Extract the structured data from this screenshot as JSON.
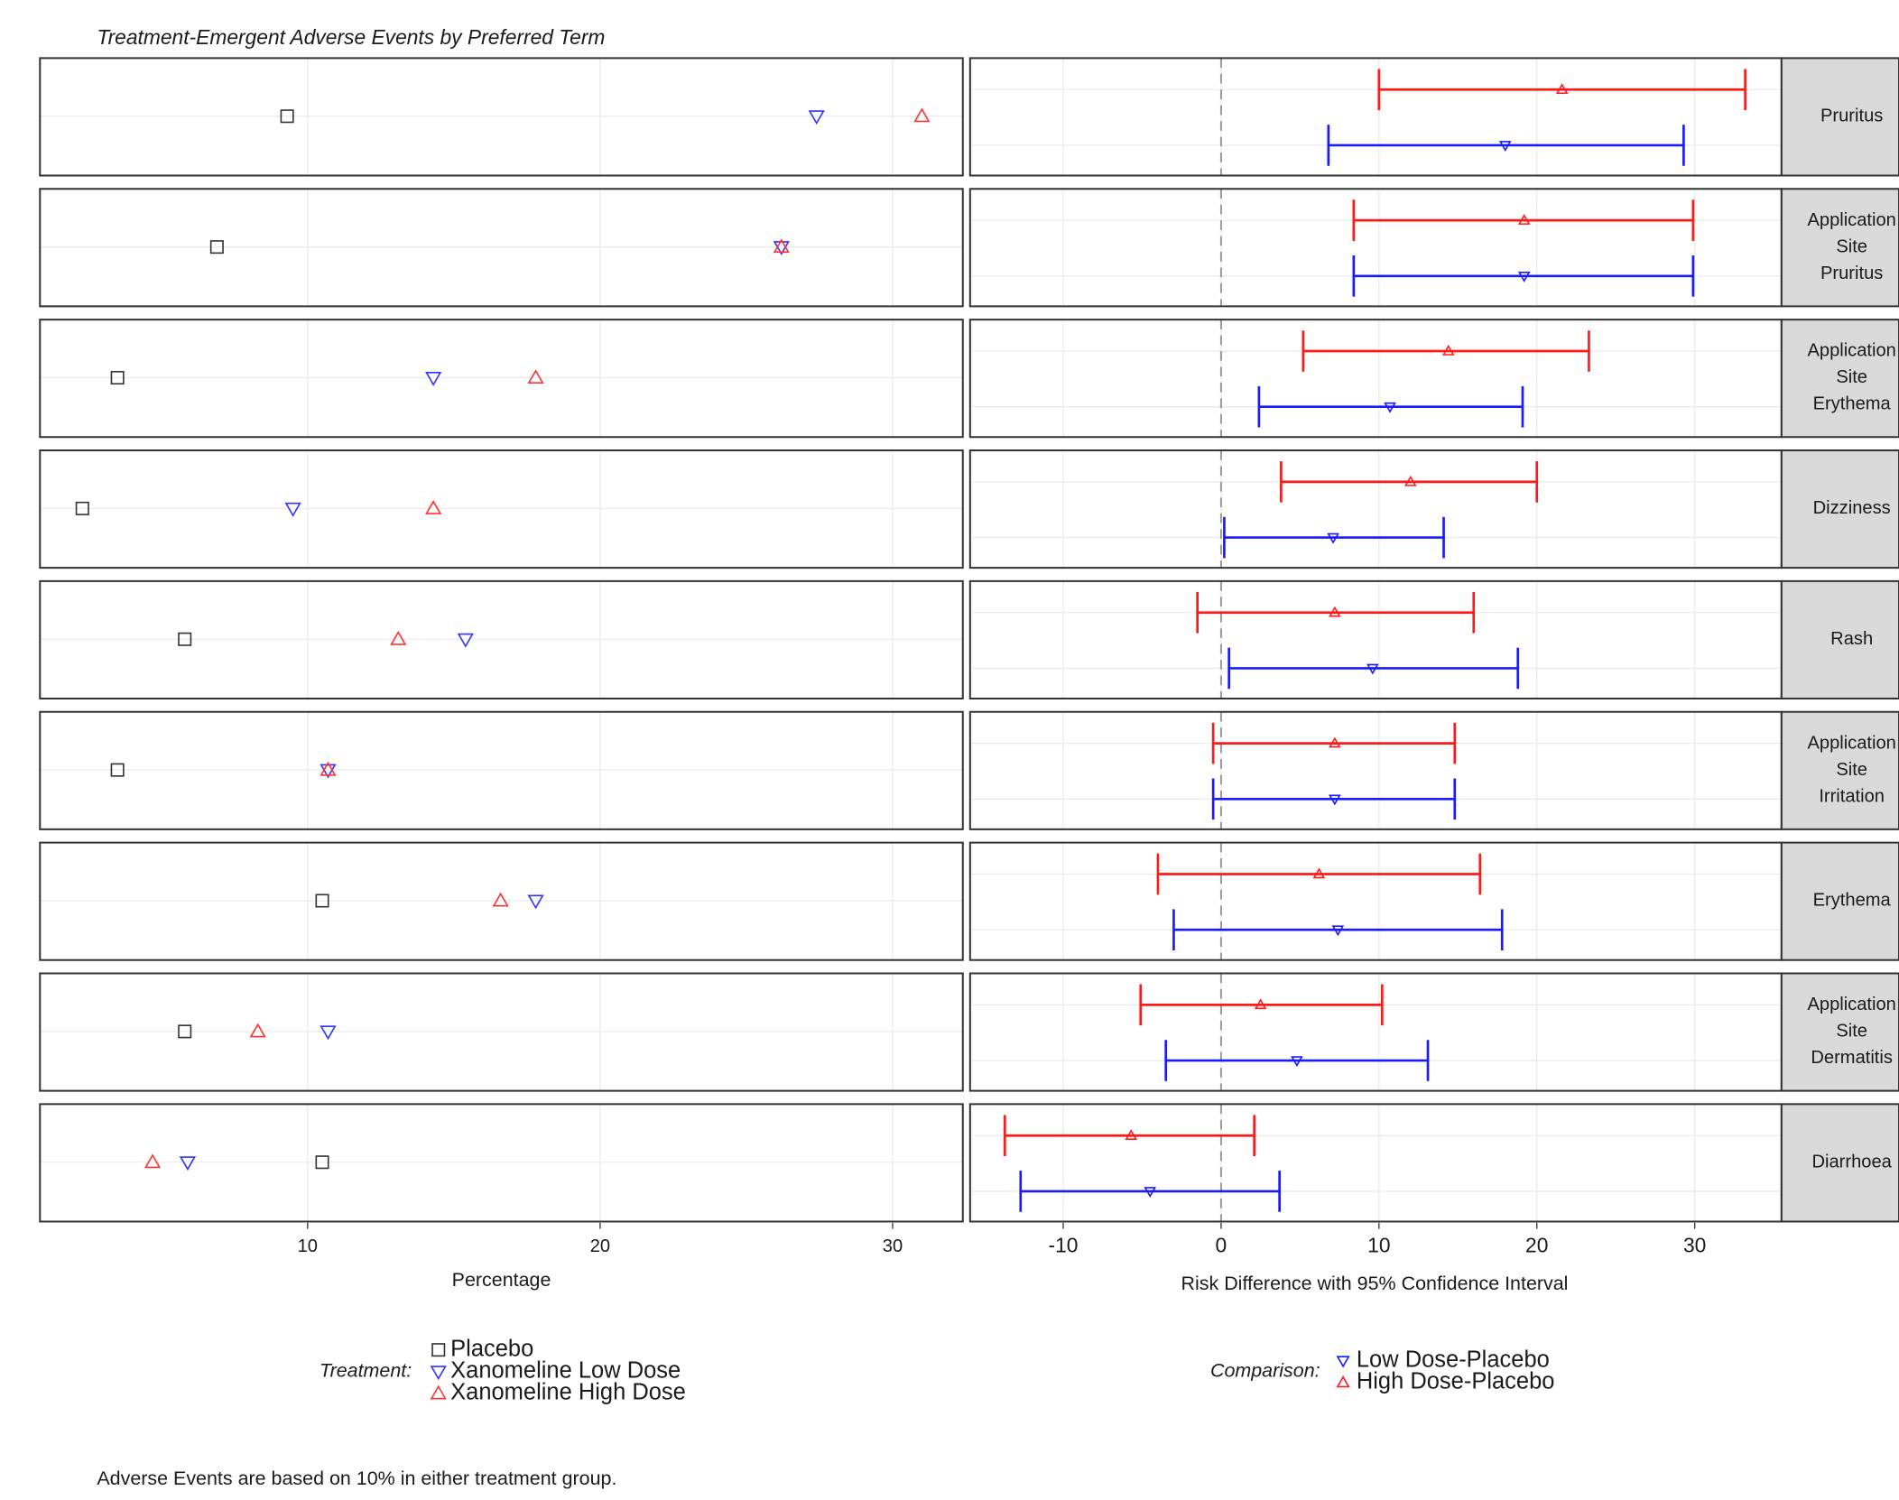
{
  "chart_data": [
    {
      "type": "dot",
      "title": "Treatment-Emergent Adverse Events by Preferred Term",
      "xlabel": "Percentage",
      "xlim": [
        0.85,
        32.4
      ],
      "xticks": [
        10,
        20,
        30
      ],
      "grid": true,
      "legend_title": "Treatment:",
      "series": [
        {
          "name": "Placebo",
          "color": "#333333",
          "marker": "square",
          "values": [
            9.3,
            6.9,
            3.5,
            2.3,
            5.8,
            3.5,
            10.5,
            5.8,
            10.5
          ]
        },
        {
          "name": "Xanomeline Low Dose",
          "color": "#3333ff",
          "marker": "triangle-down",
          "values": [
            27.4,
            26.2,
            14.3,
            9.5,
            15.4,
            10.7,
            17.8,
            10.7,
            5.9
          ]
        },
        {
          "name": "Xanomeline High Dose",
          "color": "#ff3333",
          "marker": "triangle-up",
          "values": [
            31.0,
            26.2,
            17.8,
            14.3,
            13.1,
            10.7,
            16.6,
            8.3,
            4.7
          ]
        }
      ],
      "footnote": "Adverse Events are based on 10% in either treatment group."
    },
    {
      "type": "forest",
      "xlabel": "Risk Difference with 95% Confidence Interval",
      "xlim": [
        -15.9,
        35.5
      ],
      "xticks": [
        -10,
        0,
        10,
        20,
        30
      ],
      "grid": true,
      "refline": 0,
      "legend_title": "Comparison:",
      "categories": [
        [
          "Pruritus"
        ],
        [
          "Application",
          "Site",
          "Pruritus"
        ],
        [
          "Application",
          "Site",
          "Erythema"
        ],
        [
          "Dizziness"
        ],
        [
          "Rash"
        ],
        [
          "Application",
          "Site",
          "Irritation"
        ],
        [
          "Erythema"
        ],
        [
          "Application",
          "Site",
          "Dermatitis"
        ],
        [
          "Diarrhoea"
        ]
      ],
      "series": [
        {
          "name": "Low Dose-Placebo",
          "color": "#1a1aff",
          "marker": "triangle-down",
          "values": [
            18.0,
            19.2,
            10.7,
            7.1,
            9.6,
            7.2,
            7.4,
            4.8,
            -4.5
          ],
          "lower": [
            6.8,
            8.4,
            2.4,
            0.2,
            0.5,
            -0.5,
            -3.0,
            -3.5,
            -12.7
          ],
          "upper": [
            29.3,
            29.9,
            19.1,
            14.1,
            18.8,
            14.8,
            17.8,
            13.1,
            3.7
          ]
        },
        {
          "name": "High Dose-Placebo",
          "color": "#ff1a1a",
          "marker": "triangle-up",
          "values": [
            21.6,
            19.2,
            14.4,
            12.0,
            7.2,
            7.2,
            6.2,
            2.5,
            -5.7
          ],
          "lower": [
            10.0,
            8.4,
            5.2,
            3.8,
            -1.5,
            -0.5,
            -4.0,
            -5.1,
            -13.7
          ],
          "upper": [
            33.2,
            29.9,
            23.3,
            20.0,
            16.0,
            14.8,
            16.4,
            10.2,
            2.1
          ]
        }
      ]
    }
  ]
}
